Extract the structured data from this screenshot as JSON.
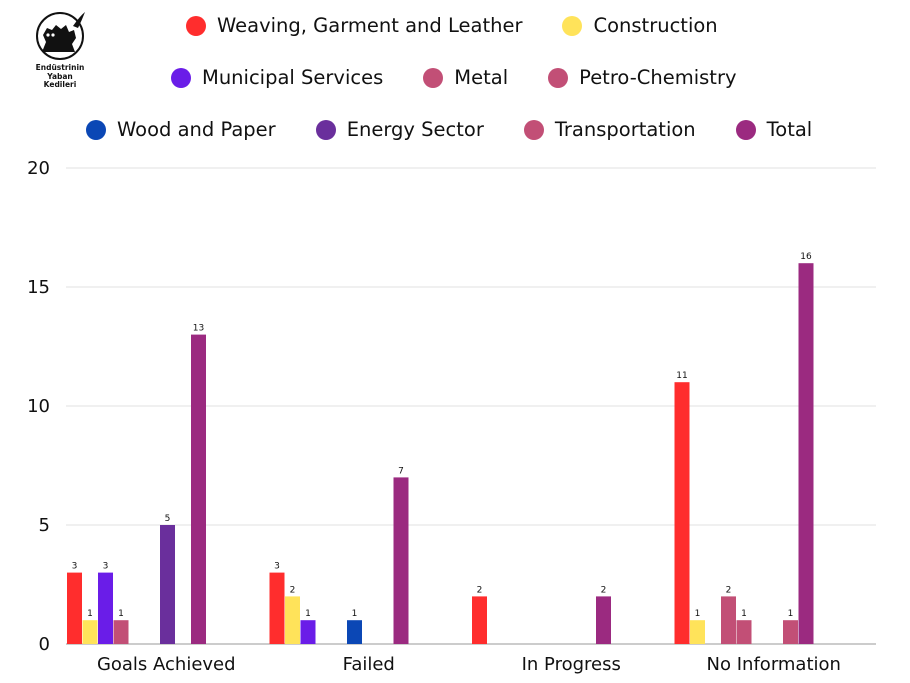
{
  "logo": {
    "lines": [
      "Endüstrinin",
      "Yaban",
      "Kedileri"
    ]
  },
  "legend": {
    "rows": [
      [
        "Weaving, Garment and Leather",
        "Construction"
      ],
      [
        "Municipal Services",
        "Metal",
        "Petro-Chemistry"
      ],
      [
        "Wood and Paper",
        "Energy Sector",
        "Transportation",
        "Total"
      ]
    ]
  },
  "chart_data": {
    "type": "bar",
    "categories": [
      "Goals Achieved",
      "Failed",
      "In Progress",
      "No Information"
    ],
    "ylim": [
      0,
      20
    ],
    "yticks": [
      0,
      5,
      10,
      15,
      20
    ],
    "grid": true,
    "legend_position": "top",
    "series": [
      {
        "name": "Weaving, Garment and Leather",
        "color": "#ff2d2d",
        "values": [
          3,
          3,
          2,
          11
        ]
      },
      {
        "name": "Construction",
        "color": "#ffe35a",
        "values": [
          1,
          2,
          null,
          1
        ]
      },
      {
        "name": "Municipal Services",
        "color": "#6a1de8",
        "values": [
          3,
          1,
          null,
          null
        ]
      },
      {
        "name": "Metal",
        "color": "#c24f76",
        "values": [
          1,
          null,
          null,
          2
        ]
      },
      {
        "name": "Petro-Chemistry",
        "color": "#c24f76",
        "values": [
          null,
          null,
          null,
          1
        ]
      },
      {
        "name": "Wood and Paper",
        "color": "#0b47b5",
        "values": [
          null,
          1,
          null,
          null
        ]
      },
      {
        "name": "Energy Sector",
        "color": "#6a2f9c",
        "values": [
          5,
          null,
          null,
          null
        ]
      },
      {
        "name": "Transportation",
        "color": "#c24f76",
        "values": [
          null,
          null,
          null,
          1
        ]
      },
      {
        "name": "Total",
        "color": "#9b2a80",
        "values": [
          13,
          7,
          2,
          16
        ]
      }
    ]
  }
}
